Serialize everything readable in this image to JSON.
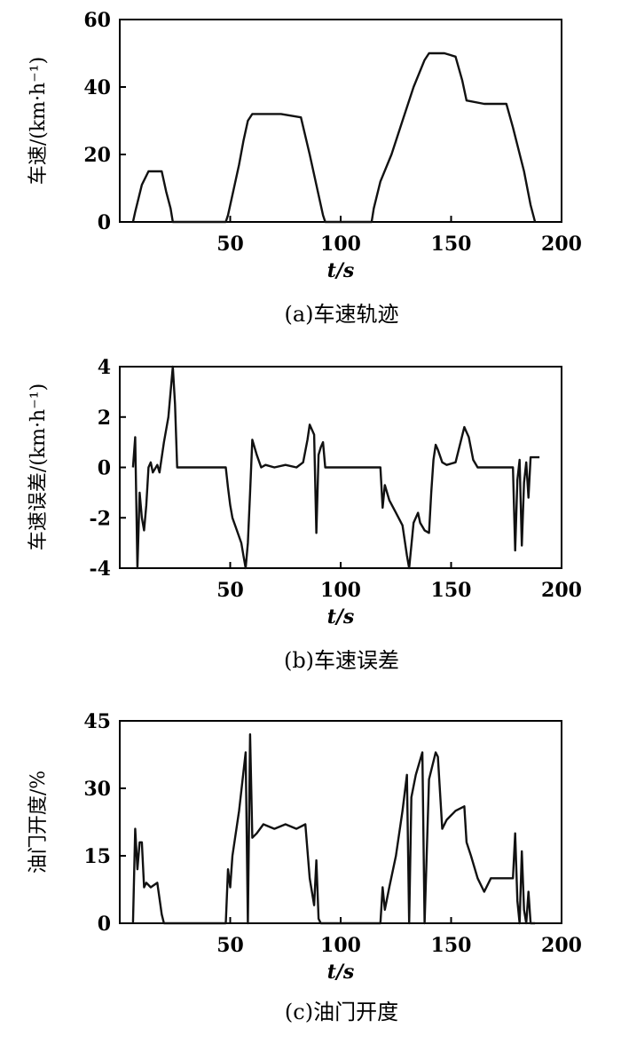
{
  "chart_data": [
    {
      "type": "line",
      "caption": "(a)车速轨迹",
      "xlabel": "t/s",
      "ylabel": "车速/(km·h⁻¹)",
      "xlim": [
        0,
        200
      ],
      "ylim": [
        0,
        60
      ],
      "xticks": [
        "50",
        "100",
        "150",
        "200"
      ],
      "yticks": [
        "0",
        "20",
        "40",
        "60"
      ],
      "xtick_values": [
        50,
        100,
        150,
        200
      ],
      "ytick_values": [
        0,
        20,
        40,
        60
      ],
      "grid": false,
      "series": [
        {
          "values_x": [
            6,
            7,
            10,
            13,
            19,
            21,
            23,
            24,
            48,
            49,
            51,
            54,
            56,
            58,
            60,
            67,
            73,
            82,
            86,
            90,
            92,
            93,
            114,
            115,
            118,
            123,
            128,
            133,
            138,
            140,
            147,
            152,
            155,
            157,
            165,
            175,
            178,
            183,
            186,
            188
          ],
          "values_y": [
            0,
            3,
            11,
            15,
            15,
            9,
            4,
            0,
            0,
            2,
            8,
            17,
            24,
            30,
            32,
            32,
            32,
            31,
            20,
            8,
            2,
            0,
            0,
            4,
            12,
            20,
            30,
            40,
            48,
            50,
            50,
            49,
            42,
            36,
            35,
            35,
            28,
            15,
            5,
            0
          ]
        }
      ]
    },
    {
      "type": "line",
      "caption": "(b)车速误差",
      "xlabel": "t/s",
      "ylabel": "车速误差/(km·h⁻¹)",
      "xlim": [
        0,
        200
      ],
      "ylim": [
        -4,
        4
      ],
      "xticks": [
        "50",
        "100",
        "150",
        "200"
      ],
      "yticks": [
        "-4",
        "-2",
        "0",
        "2",
        "4"
      ],
      "xtick_values": [
        50,
        100,
        150,
        200
      ],
      "ytick_values": [
        -4,
        -2,
        0,
        2,
        4
      ],
      "grid": false,
      "series": [
        {
          "values_x": [
            6,
            7,
            8,
            9,
            10,
            11,
            12,
            13,
            14,
            15,
            17,
            18,
            20,
            22,
            23,
            24,
            25,
            26,
            27,
            48,
            49,
            50,
            51,
            53,
            55,
            56,
            57,
            58,
            59,
            60,
            62,
            64,
            66,
            70,
            75,
            80,
            83,
            85,
            86,
            88,
            89,
            90,
            91,
            92,
            93,
            95,
            118,
            119,
            120,
            122,
            125,
            128,
            130,
            131,
            133,
            135,
            136,
            138,
            140,
            141,
            142,
            143,
            144,
            146,
            148,
            152,
            156,
            157,
            158,
            160,
            162,
            164,
            170,
            178,
            179,
            180,
            181,
            182,
            183,
            184,
            185,
            186,
            187,
            190
          ],
          "values_y": [
            0,
            1.2,
            -4,
            -1,
            -2,
            -2.5,
            -1.5,
            0,
            0.2,
            -0.2,
            0.1,
            -0.2,
            1,
            2,
            3,
            4,
            2.5,
            0,
            0,
            0,
            -0.8,
            -1.5,
            -2,
            -2.5,
            -3,
            -3.5,
            -4,
            -3,
            -1,
            1.1,
            0.5,
            0,
            0.1,
            0,
            0.1,
            0,
            0.2,
            1.1,
            1.7,
            1.3,
            -2.6,
            0.5,
            0.8,
            1.0,
            0,
            0,
            0,
            -1.6,
            -0.7,
            -1.3,
            -1.8,
            -2.3,
            -3.5,
            -4,
            -2.2,
            -1.8,
            -2.2,
            -2.5,
            -2.6,
            -1.0,
            0.3,
            0.9,
            0.7,
            0.2,
            0.1,
            0.2,
            1.6,
            1.4,
            1.2,
            0.3,
            0,
            0,
            0,
            0,
            -3.3,
            -0.5,
            0.3,
            -3.1,
            -0.6,
            0.2,
            -1.2,
            0.4,
            0.4,
            0.4
          ]
        }
      ]
    },
    {
      "type": "line",
      "caption": "(c)油门开度",
      "xlabel": "t/s",
      "ylabel": "油门开度/%",
      "xlim": [
        0,
        200
      ],
      "ylim": [
        0,
        45
      ],
      "xticks": [
        "50",
        "100",
        "150",
        "200"
      ],
      "yticks": [
        "0",
        "15",
        "30",
        "45"
      ],
      "xtick_values": [
        50,
        100,
        150,
        200
      ],
      "ytick_values": [
        0,
        15,
        30,
        45
      ],
      "grid": false,
      "series": [
        {
          "values_x": [
            6,
            7,
            8,
            9,
            10,
            11,
            12,
            14,
            17,
            19,
            20,
            22,
            48,
            49,
            50,
            51,
            54,
            57,
            58,
            59,
            60,
            62,
            65,
            70,
            75,
            80,
            84,
            86,
            88,
            89,
            90,
            91,
            92,
            118,
            119,
            120,
            122,
            125,
            128,
            130,
            131,
            132,
            134,
            137,
            138,
            140,
            143,
            144,
            146,
            148,
            152,
            156,
            157,
            159,
            162,
            165,
            168,
            170,
            172,
            178,
            179,
            180,
            181,
            182,
            183,
            184,
            185,
            186,
            187,
            188
          ],
          "values_y": [
            0,
            21,
            12,
            18,
            18,
            8,
            9,
            8,
            9,
            2,
            0,
            0,
            0,
            12,
            8,
            15,
            25,
            38,
            0,
            42,
            19,
            20,
            22,
            21,
            22,
            21,
            22,
            10,
            4,
            14,
            1,
            0,
            0,
            0,
            8,
            3,
            8,
            15,
            25,
            33,
            0,
            28,
            33,
            38,
            0,
            32,
            38,
            37,
            21,
            23,
            25,
            26,
            18,
            15,
            10,
            7,
            10,
            10,
            10,
            10,
            20,
            5,
            0,
            16,
            3,
            0,
            7,
            0,
            0,
            0
          ]
        }
      ]
    }
  ]
}
